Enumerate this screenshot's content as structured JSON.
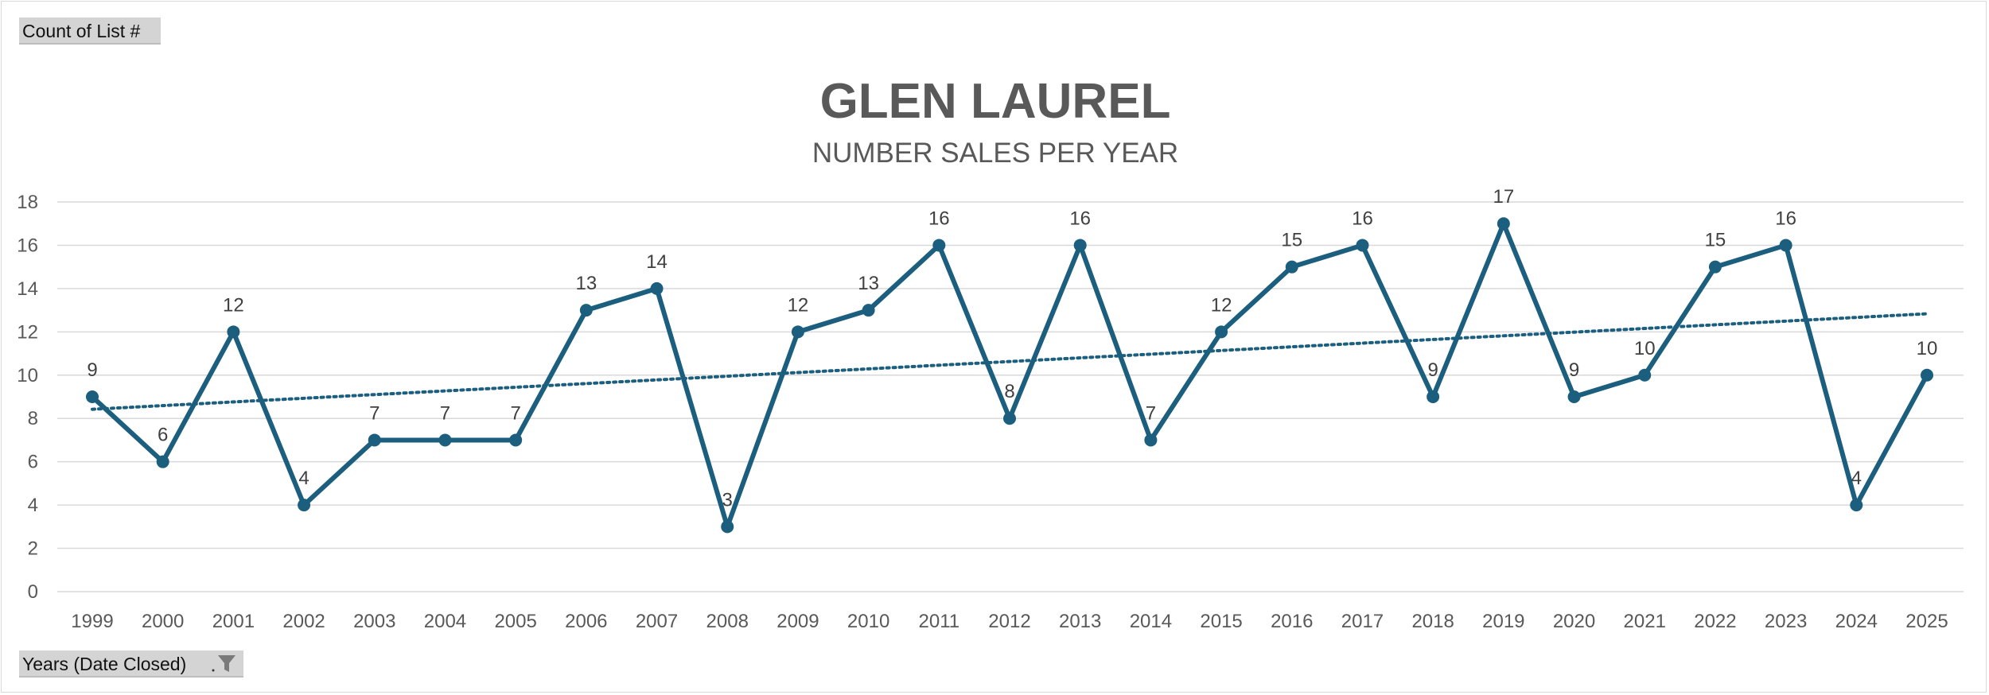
{
  "value_field_button": {
    "label": "Count of List #"
  },
  "axis_field_button": {
    "label": "Years (Date Closed)",
    "icon": "filter-icon"
  },
  "chart_data": {
    "type": "line",
    "title": "GLEN LAUREL",
    "subtitle": "NUMBER SALES PER YEAR",
    "xlabel": "",
    "ylabel": "",
    "categories": [
      "1999",
      "2000",
      "2001",
      "2002",
      "2003",
      "2004",
      "2005",
      "2006",
      "2007",
      "2008",
      "2009",
      "2010",
      "2011",
      "2012",
      "2013",
      "2014",
      "2015",
      "2016",
      "2017",
      "2018",
      "2019",
      "2020",
      "2021",
      "2022",
      "2023",
      "2024",
      "2025"
    ],
    "series": [
      {
        "values": [
          9,
          6,
          12,
          4,
          7,
          7,
          7,
          13,
          14,
          3,
          12,
          13,
          16,
          8,
          16,
          7,
          12,
          15,
          16,
          9,
          17,
          9,
          10,
          15,
          16,
          4,
          10
        ],
        "color": "#1b5e7e",
        "markers": true,
        "data_labels": true
      }
    ],
    "trendline": {
      "type": "linear",
      "style": "dotted",
      "color": "#1b5e7e"
    },
    "ylim": [
      0,
      18
    ],
    "yticks": [
      0,
      2,
      4,
      6,
      8,
      10,
      12,
      14,
      16,
      18
    ],
    "grid": true,
    "legend": "none"
  }
}
